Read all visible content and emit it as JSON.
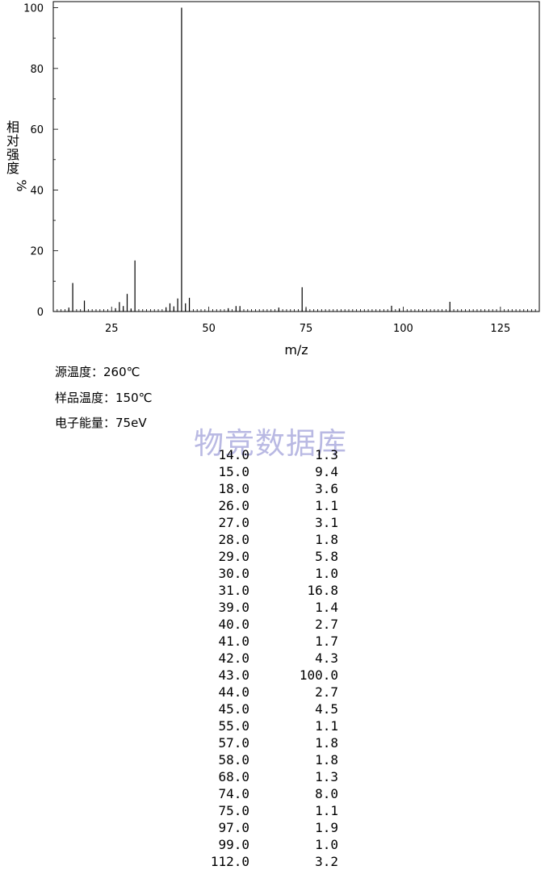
{
  "chart_data": {
    "type": "bar",
    "xlabel": "m/z",
    "ylabel_chars": [
      "相",
      "对",
      "强",
      "度",
      "%"
    ],
    "xlim": [
      10,
      135
    ],
    "ylim": [
      0,
      102
    ],
    "x_ticks": [
      25,
      50,
      75,
      100,
      125
    ],
    "y_ticks": [
      0,
      20,
      40,
      60,
      80,
      100
    ],
    "grid": false,
    "peaks": [
      {
        "mz": 14,
        "ri": 1.3
      },
      {
        "mz": 15,
        "ri": 9.4
      },
      {
        "mz": 18,
        "ri": 3.6
      },
      {
        "mz": 26,
        "ri": 1.1
      },
      {
        "mz": 27,
        "ri": 3.1
      },
      {
        "mz": 28,
        "ri": 1.8
      },
      {
        "mz": 29,
        "ri": 5.8
      },
      {
        "mz": 30,
        "ri": 1.0
      },
      {
        "mz": 31,
        "ri": 16.8
      },
      {
        "mz": 39,
        "ri": 1.4
      },
      {
        "mz": 40,
        "ri": 2.7
      },
      {
        "mz": 41,
        "ri": 1.7
      },
      {
        "mz": 42,
        "ri": 4.3
      },
      {
        "mz": 43,
        "ri": 100.0
      },
      {
        "mz": 44,
        "ri": 2.7
      },
      {
        "mz": 45,
        "ri": 4.5
      },
      {
        "mz": 55,
        "ri": 1.1
      },
      {
        "mz": 57,
        "ri": 1.8
      },
      {
        "mz": 58,
        "ri": 1.8
      },
      {
        "mz": 68,
        "ri": 1.3
      },
      {
        "mz": 74,
        "ri": 8.0
      },
      {
        "mz": 75,
        "ri": 1.1
      },
      {
        "mz": 97,
        "ri": 1.9
      },
      {
        "mz": 99,
        "ri": 1.0
      },
      {
        "mz": 112,
        "ri": 3.2
      }
    ]
  },
  "conditions": {
    "source_temp": "源温度：260℃",
    "sample_temp": "样品温度：150℃",
    "electron_energy": "电子能量：75eV"
  },
  "watermark": "物竞数据库",
  "peak_table": [
    {
      "mz": "14.0",
      "ri": "1.3"
    },
    {
      "mz": "15.0",
      "ri": "9.4"
    },
    {
      "mz": "18.0",
      "ri": "3.6"
    },
    {
      "mz": "26.0",
      "ri": "1.1"
    },
    {
      "mz": "27.0",
      "ri": "3.1"
    },
    {
      "mz": "28.0",
      "ri": "1.8"
    },
    {
      "mz": "29.0",
      "ri": "5.8"
    },
    {
      "mz": "30.0",
      "ri": "1.0"
    },
    {
      "mz": "31.0",
      "ri": "16.8"
    },
    {
      "mz": "39.0",
      "ri": "1.4"
    },
    {
      "mz": "40.0",
      "ri": "2.7"
    },
    {
      "mz": "41.0",
      "ri": "1.7"
    },
    {
      "mz": "42.0",
      "ri": "4.3"
    },
    {
      "mz": "43.0",
      "ri": "100.0"
    },
    {
      "mz": "44.0",
      "ri": "2.7"
    },
    {
      "mz": "45.0",
      "ri": "4.5"
    },
    {
      "mz": "55.0",
      "ri": "1.1"
    },
    {
      "mz": "57.0",
      "ri": "1.8"
    },
    {
      "mz": "58.0",
      "ri": "1.8"
    },
    {
      "mz": "68.0",
      "ri": "1.3"
    },
    {
      "mz": "74.0",
      "ri": "8.0"
    },
    {
      "mz": "75.0",
      "ri": "1.1"
    },
    {
      "mz": "97.0",
      "ri": "1.9"
    },
    {
      "mz": "99.0",
      "ri": "1.0"
    },
    {
      "mz": "112.0",
      "ri": "3.2"
    }
  ]
}
